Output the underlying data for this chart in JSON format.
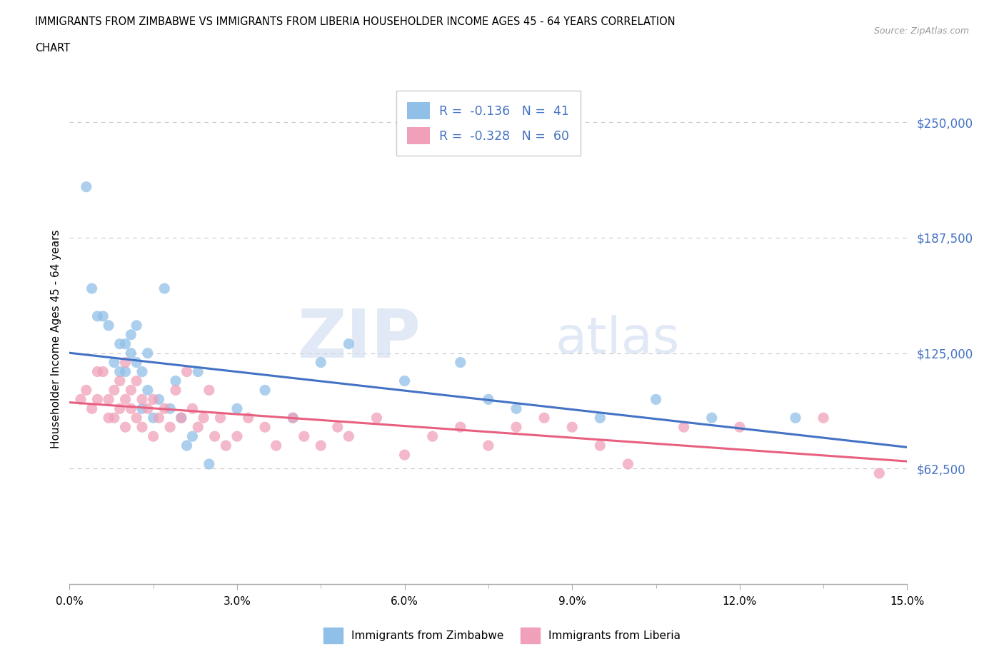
{
  "title_line1": "IMMIGRANTS FROM ZIMBABWE VS IMMIGRANTS FROM LIBERIA HOUSEHOLDER INCOME AGES 45 - 64 YEARS CORRELATION",
  "title_line2": "CHART",
  "source": "Source: ZipAtlas.com",
  "ylabel": "Householder Income Ages 45 - 64 years",
  "xlabel_ticks": [
    "0.0%",
    "3.0%",
    "6.0%",
    "9.0%",
    "12.0%",
    "15.0%"
  ],
  "xlabel_vals": [
    0.0,
    3.0,
    6.0,
    9.0,
    12.0,
    15.0
  ],
  "yticks": [
    0,
    62500,
    125000,
    187500,
    250000
  ],
  "ytick_labels": [
    "",
    "$62,500",
    "$125,000",
    "$187,500",
    "$250,000"
  ],
  "xlim": [
    0,
    15.0
  ],
  "ylim": [
    0,
    265000
  ],
  "watermark_zip": "ZIP",
  "watermark_atlas": "atlas",
  "zimbabwe_color": "#90c0e8",
  "liberia_color": "#f0a0b8",
  "zimbabwe_line_color": "#4472c4",
  "liberia_line_color": "#e86080",
  "legend_R_color": "#4472c4",
  "ytick_color": "#4472c4",
  "r_zimbabwe": -0.136,
  "n_zimbabwe": 41,
  "r_liberia": -0.328,
  "n_liberia": 60,
  "zimbabwe_x": [
    0.3,
    0.4,
    0.5,
    0.6,
    0.7,
    0.8,
    0.9,
    0.9,
    1.0,
    1.0,
    1.1,
    1.1,
    1.2,
    1.2,
    1.3,
    1.3,
    1.4,
    1.4,
    1.5,
    1.6,
    1.7,
    1.8,
    1.9,
    2.0,
    2.1,
    2.2,
    2.3,
    2.5,
    3.0,
    3.5,
    4.0,
    4.5,
    5.0,
    6.0,
    7.0,
    7.5,
    8.0,
    9.5,
    10.5,
    11.5,
    13.0
  ],
  "zimbabwe_y": [
    215000,
    160000,
    145000,
    145000,
    140000,
    120000,
    130000,
    115000,
    115000,
    130000,
    125000,
    135000,
    120000,
    140000,
    115000,
    95000,
    105000,
    125000,
    90000,
    100000,
    160000,
    95000,
    110000,
    90000,
    75000,
    80000,
    115000,
    65000,
    95000,
    105000,
    90000,
    120000,
    130000,
    110000,
    120000,
    100000,
    95000,
    90000,
    100000,
    90000,
    90000
  ],
  "liberia_x": [
    0.2,
    0.3,
    0.4,
    0.5,
    0.5,
    0.6,
    0.7,
    0.7,
    0.8,
    0.8,
    0.9,
    0.9,
    1.0,
    1.0,
    1.0,
    1.1,
    1.1,
    1.2,
    1.2,
    1.3,
    1.3,
    1.4,
    1.5,
    1.5,
    1.6,
    1.7,
    1.8,
    1.9,
    2.0,
    2.1,
    2.2,
    2.3,
    2.4,
    2.5,
    2.6,
    2.7,
    2.8,
    3.0,
    3.2,
    3.5,
    3.7,
    4.0,
    4.2,
    4.5,
    4.8,
    5.0,
    5.5,
    6.0,
    6.5,
    7.0,
    7.5,
    8.0,
    8.5,
    9.0,
    9.5,
    10.0,
    11.0,
    12.0,
    13.5,
    14.5
  ],
  "liberia_y": [
    100000,
    105000,
    95000,
    115000,
    100000,
    115000,
    100000,
    90000,
    105000,
    90000,
    110000,
    95000,
    100000,
    120000,
    85000,
    105000,
    95000,
    110000,
    90000,
    100000,
    85000,
    95000,
    100000,
    80000,
    90000,
    95000,
    85000,
    105000,
    90000,
    115000,
    95000,
    85000,
    90000,
    105000,
    80000,
    90000,
    75000,
    80000,
    90000,
    85000,
    75000,
    90000,
    80000,
    75000,
    85000,
    80000,
    90000,
    70000,
    80000,
    85000,
    75000,
    85000,
    90000,
    85000,
    75000,
    65000,
    85000,
    85000,
    90000,
    60000
  ]
}
